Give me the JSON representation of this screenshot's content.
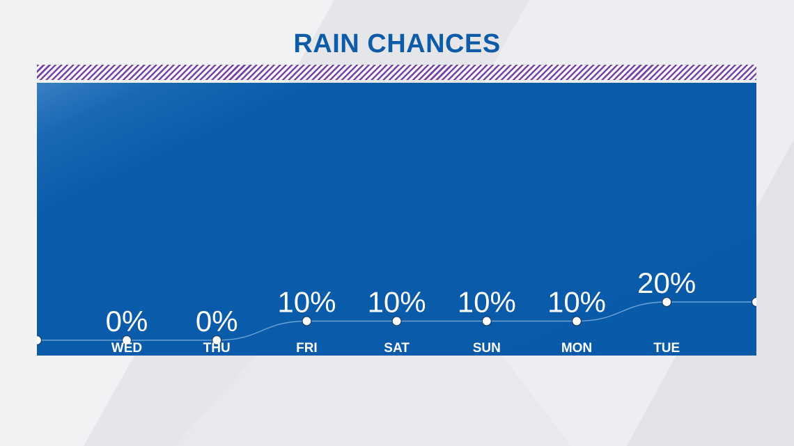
{
  "title": "RAIN CHANCES",
  "colors": {
    "title": "#0e5ca8",
    "panel": "#095aa8",
    "stripe": "#7a3fa8",
    "background": "#e9ebee",
    "point_fill": "#ffffff"
  },
  "chart_data": {
    "type": "line",
    "title": "RAIN CHANCES",
    "categories": [
      "WED",
      "THU",
      "FRI",
      "SAT",
      "SUN",
      "MON",
      "TUE"
    ],
    "series": [
      {
        "values": [
          0,
          0,
          10,
          10,
          10,
          10,
          20
        ]
      }
    ],
    "data_labels": [
      "0%",
      "0%",
      "10%",
      "10%",
      "10%",
      "10%",
      "20%"
    ],
    "ylim": [
      0,
      100
    ],
    "grid": false,
    "legend": "none"
  }
}
